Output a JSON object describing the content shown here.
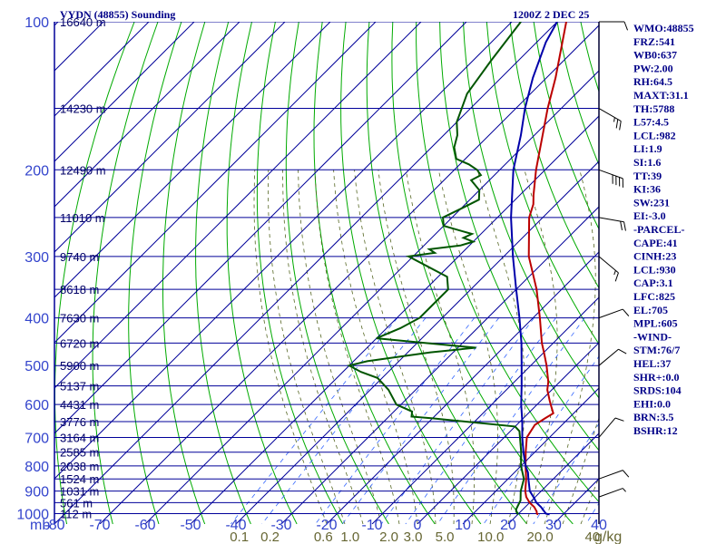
{
  "chart_data": {
    "type": "skew-t",
    "title": "VYDN (48855) Sounding",
    "timestamp": "1200Z  2 DEC 25",
    "pressure_unit": "mb",
    "mixing_ratio_unit": "g/kg",
    "pressure_levels": [
      100,
      200,
      300,
      400,
      500,
      600,
      700,
      800,
      900,
      1000
    ],
    "temperature_ticks": [
      -80,
      -70,
      -60,
      -50,
      -40,
      -30,
      -20,
      -10,
      0,
      10,
      20,
      30,
      40
    ],
    "mixing_ratio_labels": [
      {
        "label": "0.1",
        "ratio": 0.1
      },
      {
        "label": "0.2",
        "ratio": 0.2
      },
      {
        "label": "0.6",
        "ratio": 0.6
      },
      {
        "label": "1.0",
        "ratio": 1.0
      },
      {
        "label": "2.0",
        "ratio": 2.0
      },
      {
        "label": "3.0",
        "ratio": 3.0
      },
      {
        "label": "5.0",
        "ratio": 5.0
      },
      {
        "label": "10.0",
        "ratio": 10.0
      },
      {
        "label": "20.0",
        "ratio": 20.0
      },
      {
        "label": "40",
        "ratio": 40
      }
    ],
    "height_labels": [
      {
        "pressure": 100,
        "label": "16640 m"
      },
      {
        "pressure": 150,
        "label": "14230 m"
      },
      {
        "pressure": 200,
        "label": "12490 m"
      },
      {
        "pressure": 250,
        "label": "11010 m"
      },
      {
        "pressure": 300,
        "label": "9740 m"
      },
      {
        "pressure": 350,
        "label": "8618 m"
      },
      {
        "pressure": 400,
        "label": "7630 m"
      },
      {
        "pressure": 450,
        "label": "6720 m"
      },
      {
        "pressure": 500,
        "label": "5900 m"
      },
      {
        "pressure": 550,
        "label": "5137 m"
      },
      {
        "pressure": 600,
        "label": "4431 m"
      },
      {
        "pressure": 650,
        "label": "3776 m"
      },
      {
        "pressure": 700,
        "label": "3164 m"
      },
      {
        "pressure": 750,
        "label": "2585 m"
      },
      {
        "pressure": 800,
        "label": "2038 m"
      },
      {
        "pressure": 850,
        "label": "1524 m"
      },
      {
        "pressure": 900,
        "label": "1031 m"
      },
      {
        "pressure": 950,
        "label": "561 m"
      },
      {
        "pressure": 1000,
        "label": "112 m"
      }
    ],
    "series": [
      {
        "name": "temperature",
        "color": "#bb0000",
        "points": [
          [
            1004,
            24.5
          ],
          [
            1000,
            24
          ],
          [
            990,
            23.5
          ],
          [
            970,
            22
          ],
          [
            950,
            20
          ],
          [
            925,
            18
          ],
          [
            900,
            16.5
          ],
          [
            850,
            14
          ],
          [
            800,
            11
          ],
          [
            750,
            8
          ],
          [
            700,
            5
          ],
          [
            660,
            4
          ],
          [
            640,
            4.8
          ],
          [
            625,
            5.5
          ],
          [
            605,
            3.5
          ],
          [
            590,
            2
          ],
          [
            560,
            -1
          ],
          [
            540,
            -2.5
          ],
          [
            500,
            -6.5
          ],
          [
            470,
            -10
          ],
          [
            450,
            -12.5
          ],
          [
            400,
            -18.5
          ],
          [
            350,
            -25.5
          ],
          [
            300,
            -34.5
          ],
          [
            250,
            -43
          ],
          [
            235,
            -45
          ],
          [
            225,
            -47
          ],
          [
            200,
            -52
          ],
          [
            150,
            -63
          ],
          [
            130,
            -68
          ],
          [
            100,
            -78
          ]
        ]
      },
      {
        "name": "parcel",
        "color": "#0000aa",
        "points": [
          [
            1004,
            27
          ],
          [
            1000,
            26
          ],
          [
            970,
            23.5
          ],
          [
            950,
            21.5
          ],
          [
            930,
            20
          ],
          [
            900,
            17.5
          ],
          [
            850,
            14.5
          ],
          [
            825,
            13
          ],
          [
            800,
            11
          ],
          [
            750,
            7.5
          ],
          [
            700,
            4
          ],
          [
            650,
            0.5
          ],
          [
            600,
            -3.5
          ],
          [
            550,
            -7.5
          ],
          [
            500,
            -12
          ],
          [
            450,
            -17
          ],
          [
            400,
            -23
          ],
          [
            350,
            -30
          ],
          [
            300,
            -38
          ],
          [
            250,
            -47
          ],
          [
            200,
            -57
          ],
          [
            170,
            -63
          ],
          [
            150,
            -68
          ],
          [
            130,
            -73
          ],
          [
            110,
            -78
          ],
          [
            100,
            -80
          ]
        ]
      },
      {
        "name": "dewpoint",
        "color": "#005500",
        "points": [
          [
            1004,
            20
          ],
          [
            990,
            19
          ],
          [
            980,
            18.5
          ],
          [
            960,
            18
          ],
          [
            940,
            17.5
          ],
          [
            900,
            15.5
          ],
          [
            850,
            13.5
          ],
          [
            800,
            10
          ],
          [
            750,
            7
          ],
          [
            700,
            3.5
          ],
          [
            680,
            2
          ],
          [
            665,
            0
          ],
          [
            650,
            -12
          ],
          [
            640,
            -20
          ],
          [
            635,
            -25
          ],
          [
            620,
            -26
          ],
          [
            600,
            -31
          ],
          [
            560,
            -36
          ],
          [
            530,
            -41
          ],
          [
            515,
            -46
          ],
          [
            500,
            -50
          ],
          [
            490,
            -47
          ],
          [
            470,
            -35
          ],
          [
            460,
            -26
          ],
          [
            450,
            -38
          ],
          [
            440,
            -50
          ],
          [
            420,
            -47
          ],
          [
            400,
            -45
          ],
          [
            380,
            -45
          ],
          [
            350,
            -45
          ],
          [
            330,
            -48
          ],
          [
            300,
            -61
          ],
          [
            295,
            -56
          ],
          [
            290,
            -58
          ],
          [
            285,
            -52
          ],
          [
            280,
            -50
          ],
          [
            275,
            -53
          ],
          [
            270,
            -52
          ],
          [
            265,
            -56
          ],
          [
            260,
            -60
          ],
          [
            250,
            -62
          ],
          [
            240,
            -60
          ],
          [
            230,
            -58
          ],
          [
            220,
            -60
          ],
          [
            215,
            -62
          ],
          [
            210,
            -64
          ],
          [
            205,
            -63
          ],
          [
            200,
            -65
          ],
          [
            195,
            -68
          ],
          [
            190,
            -72
          ],
          [
            180,
            -75
          ],
          [
            170,
            -77
          ],
          [
            160,
            -80
          ],
          [
            140,
            -84
          ],
          [
            120,
            -86
          ],
          [
            100,
            -88
          ]
        ]
      }
    ],
    "wind_barbs": [
      {
        "pressure": 100,
        "direction": 270,
        "speed": 10
      },
      {
        "pressure": 150,
        "direction": 300,
        "speed": 25
      },
      {
        "pressure": 200,
        "direction": 290,
        "speed": 40
      },
      {
        "pressure": 250,
        "direction": 280,
        "speed": 20
      },
      {
        "pressure": 300,
        "direction": 310,
        "speed": 15
      },
      {
        "pressure": 400,
        "direction": 250,
        "speed": 10
      },
      {
        "pressure": 500,
        "direction": 230,
        "speed": 10
      },
      {
        "pressure": 700,
        "direction": 220,
        "speed": 10
      },
      {
        "pressure": 850,
        "direction": 250,
        "speed": 10
      },
      {
        "pressure": 925,
        "direction": 250,
        "speed": 5
      }
    ],
    "indices": [
      "WMO:48855",
      "FRZ:541",
      "WB0:637",
      "PW:2.00",
      "RH:64.5",
      "MAXT:31.1",
      "TH:5788",
      "L57:4.5",
      "LCL:982",
      "LI:1.9",
      "SI:1.6",
      "TT:39",
      "KI:36",
      "SW:231",
      "EI:-3.0",
      "-PARCEL-",
      "CAPE:41",
      "CINH:23",
      "LCL:930",
      "CAP:3.1",
      "LFC:825",
      "EL:705",
      "MPL:605",
      "-WIND-",
      "STM:76/7",
      "HEL:37",
      "SHR+:0.0",
      "SRDS:104",
      "EHI:0.0",
      "BRN:3.5",
      "BSHR:12"
    ],
    "colors": {
      "isobar": "#000099",
      "isotherm": "#000099",
      "dry_adiabat": "#00aa00",
      "moist_adiabat": "#556622",
      "mixing_ratio": "#3366ff",
      "axis_label": "#3344cc",
      "mixing_label": "#666633",
      "index_text": "#000088"
    }
  }
}
